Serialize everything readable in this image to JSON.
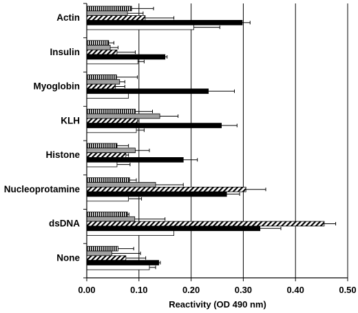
{
  "chart_data": {
    "type": "bar",
    "orientation": "horizontal",
    "xlabel": "Reactivity (OD 490 nm)",
    "ylabel": "",
    "title": "",
    "xlim": [
      0,
      0.5
    ],
    "xticks": [
      "0.00",
      "0.10",
      "0.20",
      "0.30",
      "0.40",
      "0.50"
    ],
    "grid": "vertical-major",
    "legend": "none",
    "categories": [
      "Actin",
      "Insulin",
      "Myoglobin",
      "KLH",
      "Histone",
      "Nucleoprotamine",
      "dsDNA",
      "None"
    ],
    "series": [
      {
        "style": "vertical-stripes",
        "values": [
          0.086,
          0.042,
          0.057,
          0.093,
          0.058,
          0.082,
          0.078,
          0.06
        ],
        "errors": [
          0.042,
          0.01,
          0.04,
          0.033,
          0.022,
          0.013,
          0.003,
          0.03
        ]
      },
      {
        "style": "gray",
        "values": [
          0.078,
          0.045,
          0.063,
          0.14,
          0.093,
          0.132,
          0.092,
          0.048
        ],
        "errors": [
          0.03,
          0.015,
          0.01,
          0.035,
          0.027,
          0.053,
          0.058,
          0.055
        ]
      },
      {
        "style": "diagonal-hatch",
        "values": [
          0.112,
          0.058,
          0.055,
          0.097,
          0.075,
          0.305,
          0.455,
          0.075
        ],
        "errors": [
          0.055,
          0.035,
          0.018,
          0.003,
          0.005,
          0.038,
          0.022,
          0.038
        ]
      },
      {
        "style": "black",
        "values": [
          0.298,
          0.15,
          0.233,
          0.258,
          0.185,
          0.268,
          0.332,
          0.138
        ],
        "errors": [
          0.015,
          0.004,
          0.05,
          0.03,
          0.027,
          0.025,
          0.04,
          0.003
        ]
      },
      {
        "style": "white",
        "values": [
          0.205,
          0.098,
          0.08,
          0.095,
          0.058,
          0.08,
          0.167,
          0.12
        ],
        "errors": [
          0.05,
          0.012,
          0.0,
          0.015,
          0.025,
          0.025,
          0.0,
          0.012
        ]
      }
    ]
  },
  "colors": {
    "gray_fill": "#a0a0a0",
    "black_fill": "#000000",
    "white_fill": "#ffffff",
    "outline": "#000000",
    "grid": "#000000"
  }
}
